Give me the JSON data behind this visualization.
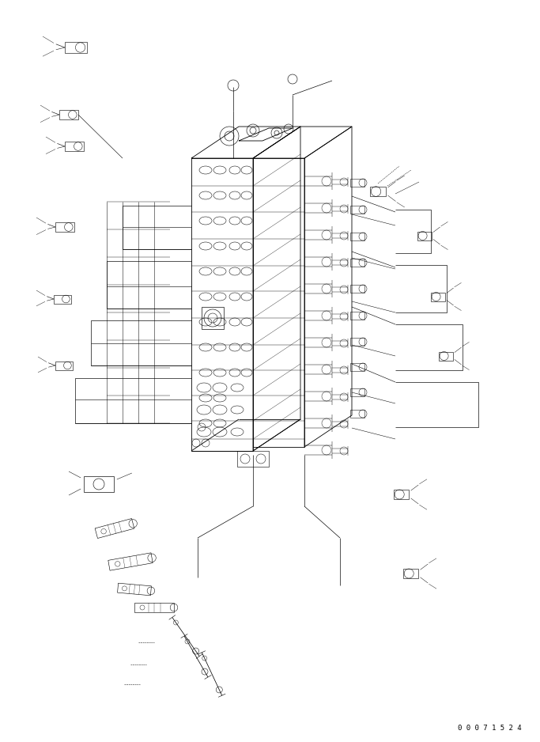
{
  "figure_width": 6.83,
  "figure_height": 9.38,
  "dpi": 100,
  "background_color": "#ffffff",
  "line_color": "#000000",
  "part_number_text": "0 0 0 7 1 5 2 4",
  "lw": 0.6
}
